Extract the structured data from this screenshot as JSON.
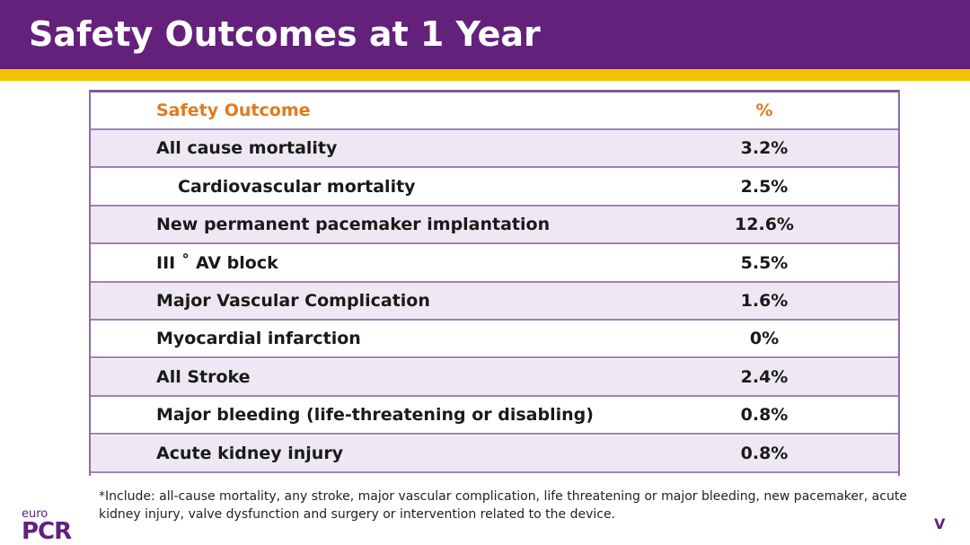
{
  "slide": {
    "title": "Safety Outcomes at 1 Year"
  },
  "colors": {
    "header_bg": "#63217c",
    "accent_bar": "#f5c400",
    "table_header_text": "#e07b1f",
    "row_shade": "#ede8f3"
  },
  "table": {
    "headers": {
      "outcome": "Safety Outcome",
      "percent": "%"
    },
    "rows": [
      {
        "outcome": "All cause mortality",
        "percent": "3.2%"
      },
      {
        "outcome": "Cardiovascular mortality",
        "percent": "2.5%"
      },
      {
        "outcome": "New permanent pacemaker implantation",
        "percent": "12.6%"
      },
      {
        "outcome": "III ˚ AV block",
        "percent": "5.5%"
      },
      {
        "outcome": "Major Vascular Complication",
        "percent": "1.6%"
      },
      {
        "outcome": "Myocardial infarction",
        "percent": "0%"
      },
      {
        "outcome": "All Stroke",
        "percent": "2.4%"
      },
      {
        "outcome": "Major bleeding (life-threatening or disabling)",
        "percent": "0.8%"
      },
      {
        "outcome": "Acute kidney injury",
        "percent": "0.8%"
      }
    ]
  },
  "footnote": "*Include: all-cause mortality, any stroke, major vascular complication, life threatening or major bleeding, new pacemaker, acute kidney injury, valve dysfunction and surgery or intervention related to the device.",
  "logo": {
    "top": "euro",
    "bottom": "PCR"
  },
  "corner_mark": "V"
}
